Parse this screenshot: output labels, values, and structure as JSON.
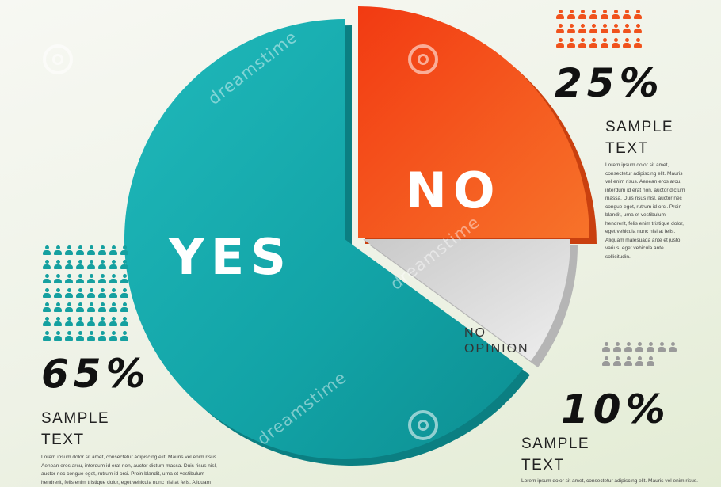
{
  "chart_data": {
    "type": "pie",
    "title": "",
    "slices": [
      {
        "label": "YES",
        "value": 65,
        "percent_text": "65%",
        "color": "#12a3a6"
      },
      {
        "label": "NO",
        "value": 25,
        "percent_text": "25%",
        "color": "#f0521c"
      },
      {
        "label": "NO OPINION",
        "value": 10,
        "percent_text": "10%",
        "color": "#e1e1e1"
      }
    ],
    "legend_placement": "around"
  },
  "labels": {
    "yes": "YES",
    "no": "NO",
    "no_opinion_line1": "NO",
    "no_opinion_line2": "OPINION"
  },
  "callouts": {
    "no": {
      "percent": "25%",
      "title_line1": "SAMPLE",
      "title_line2": "TEXT",
      "body": "Lorem ipsum dolor sit amet, consectetur adipiscing elit. Mauris vel enim risus. Aenean eros arcu, interdum id erat non, auctor dictum massa. Duis risus nisl, auctor nec congue eget, rutrum id orci. Proin blandit, urna et vestibulum hendrerit, felis enim tristique dolor, eget vehicula nunc nisi at felis. Aliquam malesuada ante et justo varius, eget vehicula ante sollicitudin.",
      "icon_color": "#f0521c"
    },
    "yes": {
      "percent": "65%",
      "title_line1": "SAMPLE",
      "title_line2": "TEXT",
      "body": "Lorem ipsum dolor sit amet, consectetur adipiscing elit. Mauris vel enim risus. Aenean eros arcu, interdum id erat non, auctor dictum massa. Duis risus nisl, auctor nec congue eget, rutrum id orci. Proin blandit, urna et vestibulum hendrerit, felis enim tristique dolor, eget vehicula nunc nisi at felis. Aliquam",
      "icon_color": "#15a0a0"
    },
    "no_opinion": {
      "percent": "10%",
      "title_line1": "SAMPLE",
      "title_line2": "TEXT",
      "body": "Lorem ipsum dolor sit amet, consectetur adipiscing elit. Mauris vel enim risus.",
      "icon_color": "#9a9a9a"
    }
  },
  "watermark": "dreamstime"
}
